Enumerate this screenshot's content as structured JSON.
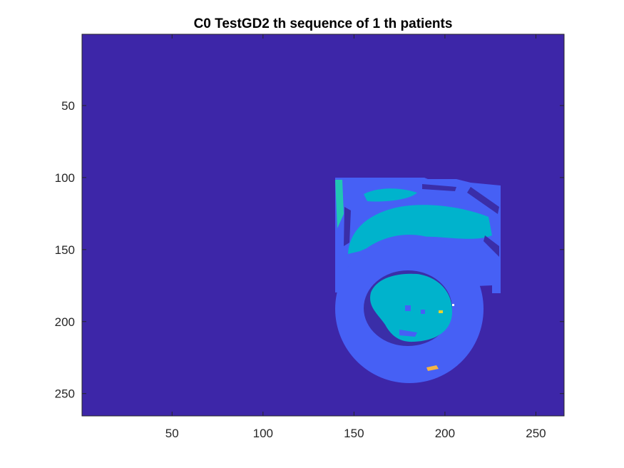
{
  "figure": {
    "title": "C0 TestGD2 th sequence of 1 th patients"
  },
  "chart_data": {
    "type": "heatmap",
    "title": "C0 TestGD2 th sequence of 1 th patients",
    "xlabel": "",
    "ylabel": "",
    "x_ticks": [
      50,
      100,
      150,
      200,
      250
    ],
    "y_ticks": [
      50,
      100,
      150,
      200,
      250
    ],
    "xlim": [
      0.5,
      265.5
    ],
    "ylim": [
      0.5,
      265.5
    ],
    "y_direction": "reverse",
    "grid": false,
    "colormap": "parula",
    "label_colors": {
      "background": "#3d26a8",
      "myocardium_region": "#4660f5",
      "dark_patches": "#3a2ea8",
      "cavity_tissue": "#00b3cc",
      "light_edges": "#21c6b3",
      "small_highlight": "#e5d22f",
      "orange_spot": "#f3b344",
      "white_dot": "#ffffff"
    },
    "regions_approx": {
      "upper_tissue_block": {
        "x_range": [
          140,
          230
        ],
        "y_range": [
          100,
          180
        ]
      },
      "ring_center": [
        180,
        195
      ],
      "ring_outer_radius": 35,
      "ring_inner_radius": 25,
      "orange_spot_center": [
        193,
        232
      ]
    }
  }
}
